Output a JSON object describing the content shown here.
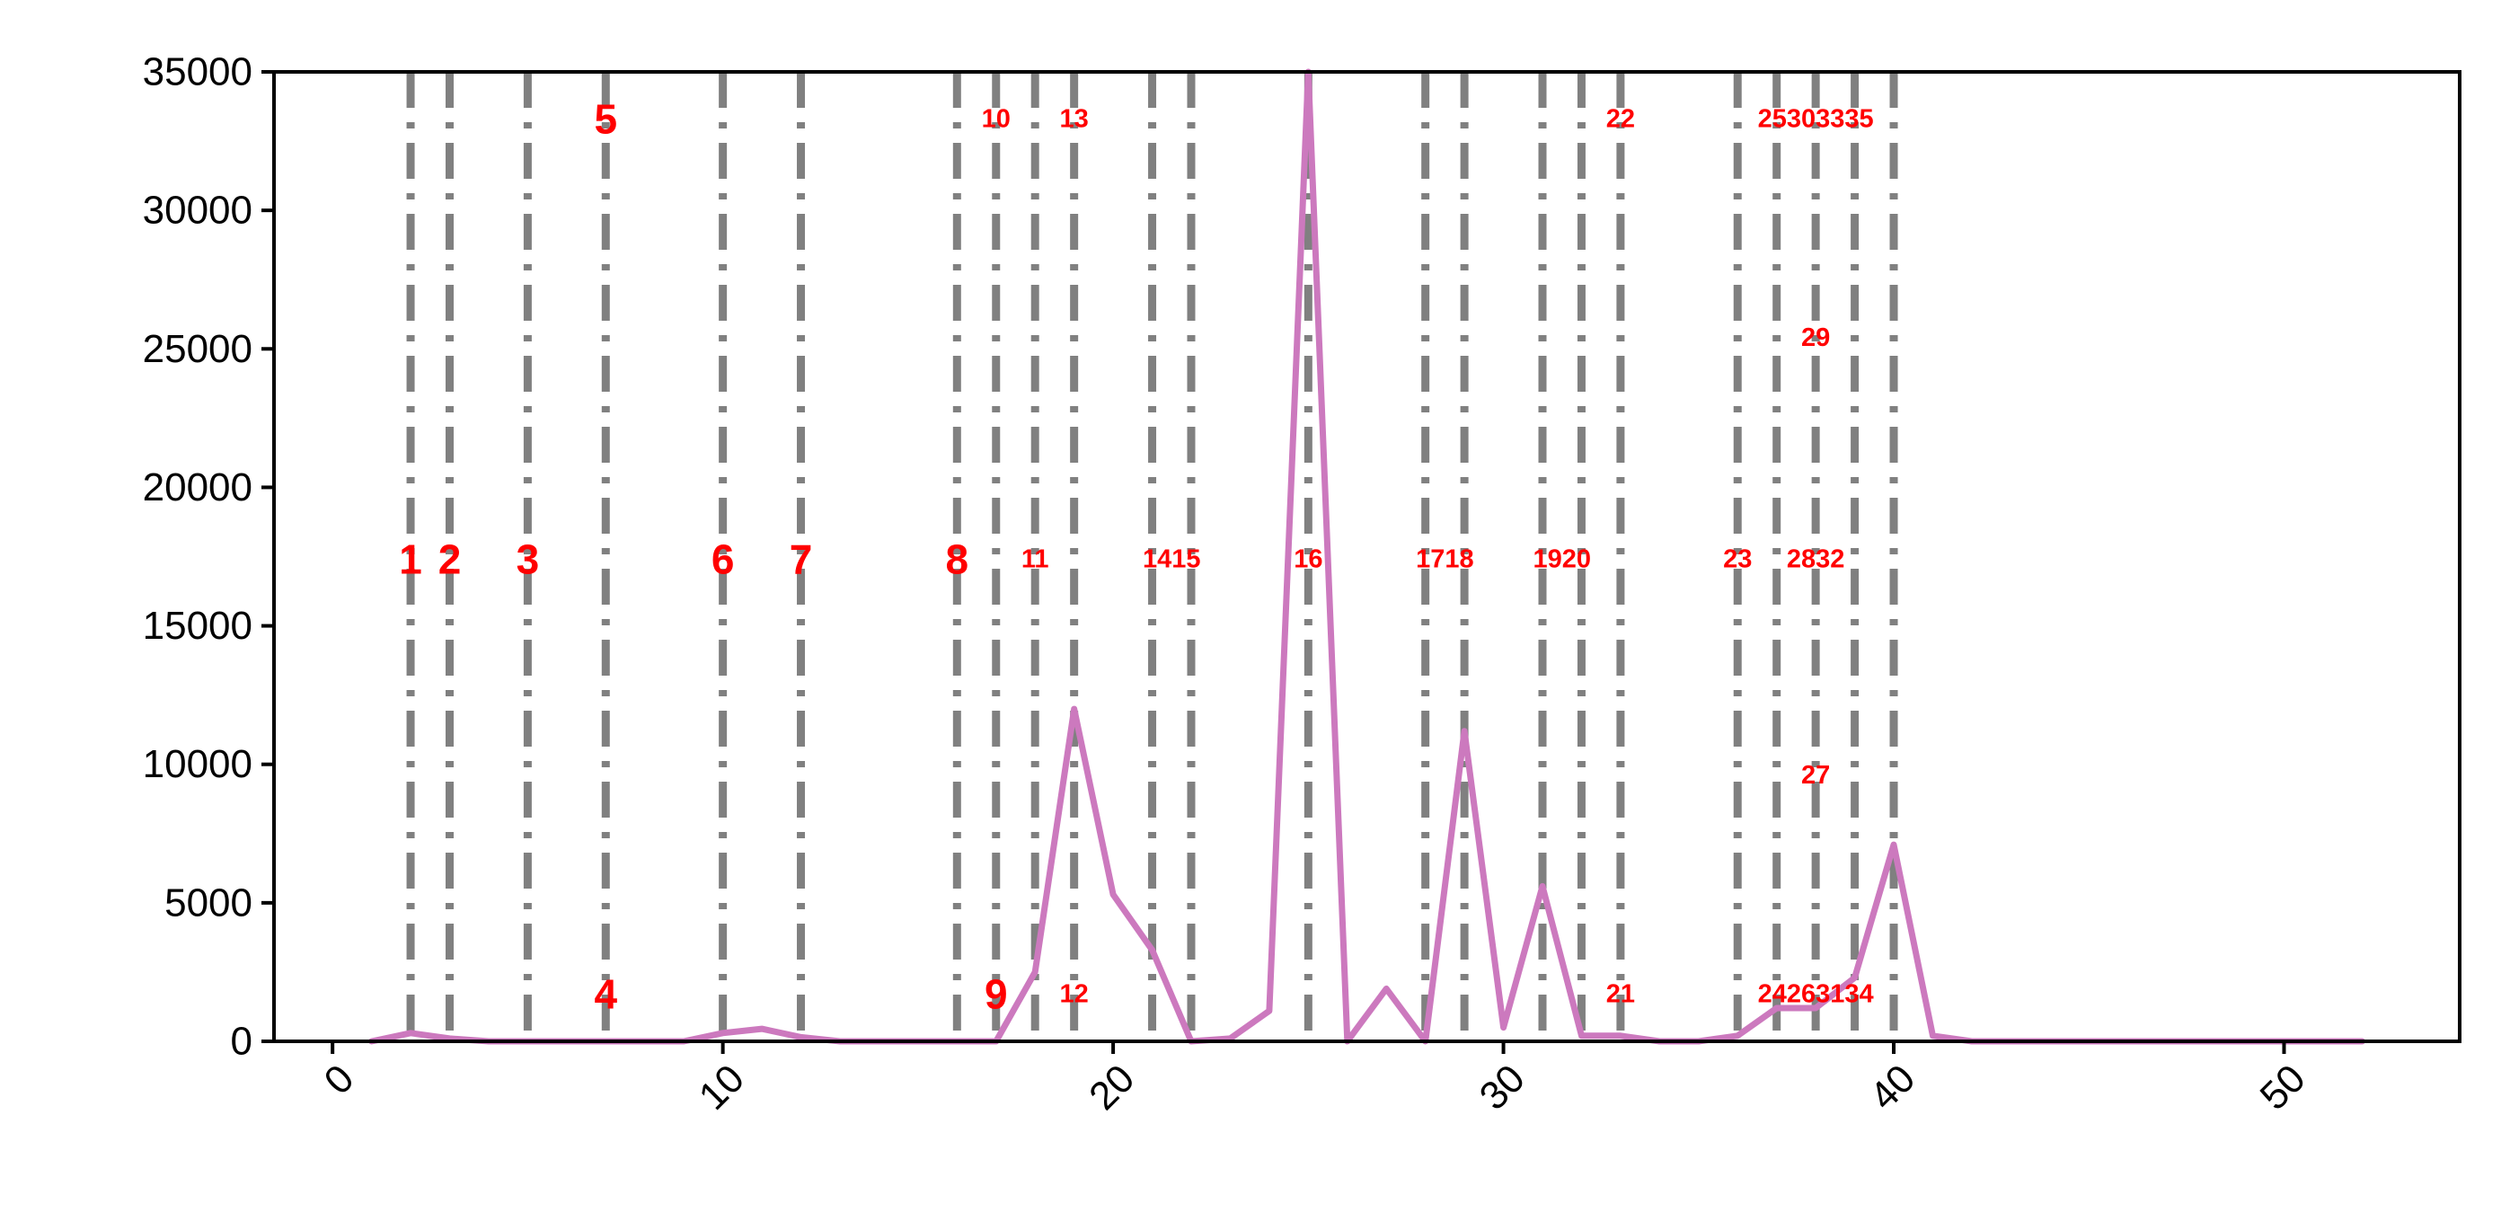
{
  "chart_data": {
    "type": "line",
    "title": "",
    "xlabel": "",
    "ylabel": "",
    "xlim": [
      -1.5,
      54.5
    ],
    "ylim": [
      0,
      35000
    ],
    "x_ticks": [
      "0",
      "10",
      "20",
      "30",
      "40",
      "50"
    ],
    "y_ticks": [
      "0",
      "5000",
      "10000",
      "15000",
      "20000",
      "25000",
      "30000",
      "35000"
    ],
    "grid": false,
    "legend": "none",
    "series": [
      {
        "color": "#cc79be",
        "x": [
          1,
          2,
          3,
          4,
          5,
          6,
          7,
          8,
          9,
          10,
          11,
          12,
          13,
          14,
          15,
          16,
          17,
          18,
          19,
          20,
          21,
          22,
          23,
          24,
          25,
          26,
          27,
          28,
          29,
          30,
          31,
          32,
          33,
          34,
          35,
          36,
          37,
          38,
          39,
          40,
          41,
          42,
          43,
          44,
          45,
          46,
          47,
          48,
          49,
          50,
          51,
          52
        ],
        "y": [
          0,
          300,
          100,
          0,
          0,
          0,
          0,
          0,
          0,
          300,
          450,
          150,
          0,
          0,
          0,
          0,
          0,
          2500,
          12000,
          5300,
          3300,
          0,
          100,
          1100,
          35000,
          0,
          1900,
          0,
          11200,
          500,
          5600,
          200,
          200,
          0,
          0,
          200,
          1200,
          1200,
          2300,
          7100,
          200,
          0,
          0,
          0,
          0,
          0,
          0,
          0,
          0,
          0,
          0,
          0
        ]
      }
    ],
    "vlines": {
      "color": "#808080",
      "style": "dash-dot",
      "x": [
        2,
        3,
        5,
        7,
        10,
        12,
        16,
        17,
        18,
        19,
        21,
        22,
        25,
        28,
        29,
        31,
        32,
        33,
        36,
        37,
        38,
        39,
        40
      ]
    },
    "annotations": [
      {
        "text": "1",
        "x": 2,
        "y": 17400,
        "size": "large"
      },
      {
        "text": "2",
        "x": 3,
        "y": 17400,
        "size": "large"
      },
      {
        "text": "3",
        "x": 5,
        "y": 17400,
        "size": "large"
      },
      {
        "text": "4",
        "x": 7,
        "y": 1700,
        "size": "large"
      },
      {
        "text": "5",
        "x": 7,
        "y": 33300,
        "size": "large"
      },
      {
        "text": "6",
        "x": 10,
        "y": 17400,
        "size": "large"
      },
      {
        "text": "7",
        "x": 12,
        "y": 17400,
        "size": "large"
      },
      {
        "text": "8",
        "x": 16,
        "y": 17400,
        "size": "large"
      },
      {
        "text": "9",
        "x": 17,
        "y": 1700,
        "size": "large"
      },
      {
        "text": "10",
        "x": 17,
        "y": 33300,
        "size": "small"
      },
      {
        "text": "11",
        "x": 18,
        "y": 17400,
        "size": "small"
      },
      {
        "text": "12",
        "x": 19,
        "y": 1700,
        "size": "small"
      },
      {
        "text": "13",
        "x": 19,
        "y": 33300,
        "size": "small"
      },
      {
        "text": "1415",
        "x": 21.5,
        "y": 17400,
        "size": "small"
      },
      {
        "text": "16",
        "x": 25,
        "y": 17400,
        "size": "small"
      },
      {
        "text": "1718",
        "x": 28.5,
        "y": 17400,
        "size": "small"
      },
      {
        "text": "1920",
        "x": 31.5,
        "y": 17400,
        "size": "small"
      },
      {
        "text": "21",
        "x": 33,
        "y": 1700,
        "size": "small"
      },
      {
        "text": "22",
        "x": 33,
        "y": 33300,
        "size": "small"
      },
      {
        "text": "23",
        "x": 36,
        "y": 17400,
        "size": "small"
      },
      {
        "text": "24263134",
        "x": 38,
        "y": 1700,
        "size": "small"
      },
      {
        "text": "25303335",
        "x": 38,
        "y": 33300,
        "size": "small"
      },
      {
        "text": "27",
        "x": 38,
        "y": 9600,
        "size": "small"
      },
      {
        "text": "2832",
        "x": 38,
        "y": 17400,
        "size": "small"
      },
      {
        "text": "29",
        "x": 38,
        "y": 25400,
        "size": "small"
      }
    ]
  }
}
